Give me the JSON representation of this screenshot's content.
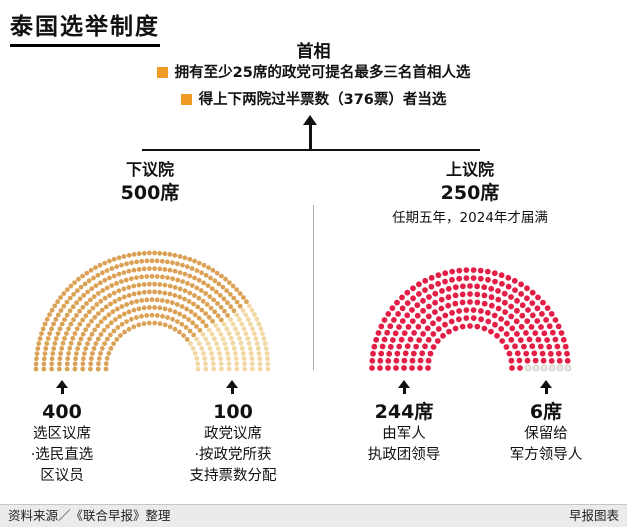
{
  "title": "泰国选举制度",
  "pm": {
    "heading": "首相",
    "bullets": [
      "拥有至少25席的政党可提名最多三名首相人选",
      "得上下两院过半票数（376票）者当选"
    ]
  },
  "lower_house": {
    "name": "下议院",
    "seats": "500席",
    "annotations": [
      {
        "value": "400",
        "title": "选区议席",
        "desc": [
          "·选民直选",
          "区议员"
        ]
      },
      {
        "value": "100",
        "title": "政党议席",
        "desc": [
          "·按政党所获",
          "支持票数分配"
        ]
      }
    ]
  },
  "upper_house": {
    "name": "上议院",
    "seats": "250席",
    "term_note": "任期五年，2024年才届满",
    "annotations": [
      {
        "value": "244席",
        "desc": [
          "由军人",
          "执政团领导"
        ]
      },
      {
        "value": "6席",
        "desc": [
          "保留给",
          "军方领导人"
        ]
      }
    ]
  },
  "footer": {
    "source": "资料来源／《联合早报》整理",
    "credit": "早报图表"
  },
  "colors": {
    "accent_orange": "#f09b26",
    "lower_constituency": "#dba155",
    "lower_party_list": "#f2d8a3",
    "upper_military": "#e41f47",
    "upper_reserved": "#edebe5"
  },
  "chart_data": [
    {
      "type": "parliament",
      "title": "下议院",
      "total_seats": 500,
      "series": [
        {
          "name": "选区议席",
          "value": 400,
          "color": "#dba155"
        },
        {
          "name": "政党议席",
          "value": 100,
          "color": "#f2d8a3"
        }
      ],
      "layout": {
        "rows": 10,
        "inner_radius": 46,
        "outer_radius": 116,
        "dot_radius": 2.4
      }
    },
    {
      "type": "parliament",
      "title": "上议院",
      "total_seats": 250,
      "series": [
        {
          "name": "由军人执政团领导",
          "value": 244,
          "color": "#e41f47"
        },
        {
          "name": "保留给军方领导人",
          "value": 6,
          "color": "#edebe5",
          "stroke": "#c4c1ba"
        }
      ],
      "layout": {
        "rows": 8,
        "inner_radius": 42,
        "outer_radius": 98,
        "dot_radius": 2.9
      }
    }
  ]
}
